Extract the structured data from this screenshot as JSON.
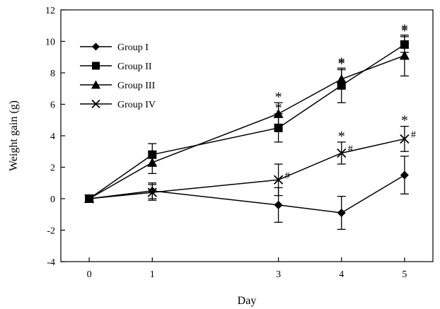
{
  "chart_data": {
    "type": "line",
    "title": "",
    "xlabel": "Day",
    "ylabel": "Weight gain (g)",
    "x": [
      0,
      1,
      3,
      4,
      5
    ],
    "x_ticks": [
      "0",
      "1",
      "3",
      "4",
      "5"
    ],
    "xlim": [
      -0.45,
      5.45
    ],
    "ylim": [
      -4,
      12
    ],
    "y_ticks": [
      "-4",
      "-2",
      "0",
      "2",
      "4",
      "6",
      "8",
      "10",
      "12"
    ],
    "grid": false,
    "legend_position": "top-left",
    "series": [
      {
        "name": "Group I",
        "marker": "diamond",
        "values": [
          0,
          0.5,
          -0.4,
          -0.9,
          1.5
        ],
        "error": [
          0,
          0.5,
          1.1,
          1.05,
          1.2
        ],
        "annotations": [
          null,
          null,
          null,
          null,
          null
        ]
      },
      {
        "name": "Group II",
        "marker": "square",
        "values": [
          0,
          2.8,
          4.5,
          7.2,
          9.8
        ],
        "error": [
          0,
          0.7,
          0.9,
          1.1,
          0.5
        ],
        "annotations": [
          null,
          null,
          "*",
          "*",
          "*"
        ]
      },
      {
        "name": "Group III",
        "marker": "triangle",
        "values": [
          0,
          2.3,
          5.4,
          7.6,
          9.1
        ],
        "error": [
          0,
          0.7,
          0.7,
          0.6,
          1.3
        ],
        "annotations": [
          null,
          null,
          "*",
          "*",
          "*"
        ]
      },
      {
        "name": "Group IV",
        "marker": "x",
        "values": [
          0,
          0.4,
          1.2,
          2.9,
          3.8
        ],
        "error": [
          0,
          0.5,
          1.0,
          0.7,
          0.8
        ],
        "annotations": [
          null,
          null,
          "#",
          "*#",
          "*#"
        ]
      }
    ]
  }
}
